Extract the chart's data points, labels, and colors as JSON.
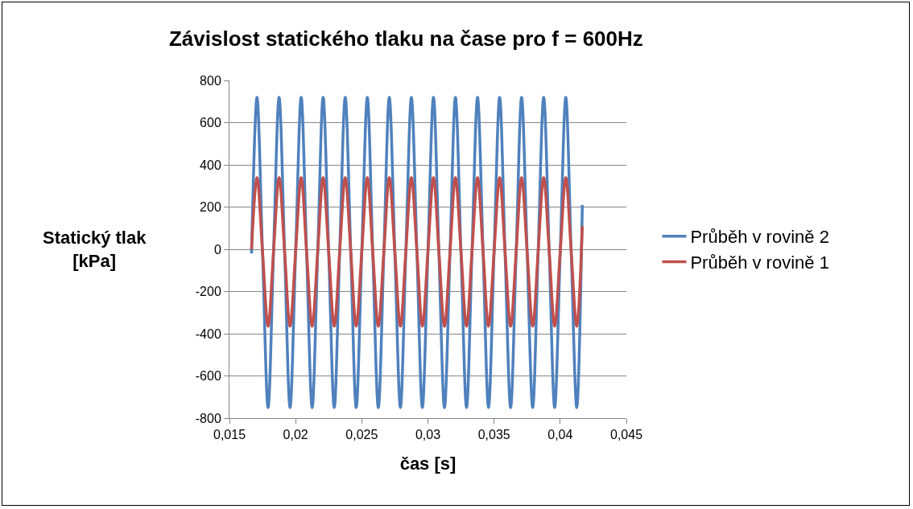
{
  "chart_data": {
    "type": "line",
    "title": "Závislost statického tlaku na čase pro f = 600Hz",
    "xlabel": "čas [s]",
    "ylabel": "Statický tlak\n[kPa]",
    "x": [
      0.01667,
      0.01708,
      0.0175,
      0.01792,
      0.01833,
      0.01875,
      0.01917,
      0.01958,
      0.02,
      0.02042,
      0.02083,
      0.02125,
      0.02167,
      0.02208,
      0.0225,
      0.02292,
      0.02333,
      0.02375,
      0.02417,
      0.02458,
      0.025,
      0.02542,
      0.02583,
      0.02625,
      0.02667,
      0.02708,
      0.0275,
      0.02792,
      0.02833,
      0.02875,
      0.02917,
      0.02958,
      0.03,
      0.03042,
      0.03083,
      0.03125,
      0.03167,
      0.03208,
      0.0325,
      0.03292,
      0.03333,
      0.03375,
      0.03417,
      0.03458,
      0.035,
      0.03542,
      0.03583,
      0.03625,
      0.03667,
      0.03708,
      0.0375,
      0.03792,
      0.03833,
      0.03875,
      0.03917,
      0.03958,
      0.04,
      0.04042,
      0.04083,
      0.04125,
      0.04167
    ],
    "series": [
      {
        "name": "Průběh v rovině 2",
        "color": "#4f81bd",
        "values": [
          -20,
          720,
          -15,
          -750,
          -15,
          720,
          -15,
          -750,
          -15,
          720,
          -15,
          -750,
          -15,
          720,
          -15,
          -750,
          -15,
          720,
          -15,
          -750,
          -15,
          720,
          -15,
          -750,
          -15,
          720,
          -15,
          -750,
          -15,
          720,
          -15,
          -750,
          -15,
          720,
          -15,
          -750,
          -15,
          720,
          -15,
          -750,
          -15,
          720,
          -15,
          -750,
          -15,
          720,
          -15,
          -750,
          -15,
          720,
          -15,
          -750,
          -15,
          720,
          -15,
          -750,
          -15,
          720,
          -15,
          -750,
          210
        ]
      },
      {
        "name": "Průběh v rovině 1",
        "color": "#c0504d",
        "values": [
          0,
          340,
          -12,
          -365,
          -12,
          340,
          -12,
          -365,
          -12,
          340,
          -12,
          -365,
          -12,
          340,
          -12,
          -365,
          -12,
          340,
          -12,
          -365,
          -12,
          340,
          -12,
          -365,
          -12,
          340,
          -12,
          -365,
          -12,
          340,
          -12,
          -365,
          -12,
          340,
          -12,
          -365,
          -12,
          340,
          -12,
          -365,
          -12,
          340,
          -12,
          -365,
          -12,
          340,
          -12,
          -365,
          -12,
          340,
          -12,
          -365,
          -12,
          340,
          -12,
          -365,
          -12,
          340,
          -12,
          -365,
          110
        ]
      }
    ],
    "xlim": [
      0.015,
      0.045
    ],
    "xticks": [
      {
        "value": 0.015,
        "label": "0,015"
      },
      {
        "value": 0.02,
        "label": "0,02"
      },
      {
        "value": 0.025,
        "label": "0,025"
      },
      {
        "value": 0.03,
        "label": "0,03"
      },
      {
        "value": 0.035,
        "label": "0,035"
      },
      {
        "value": 0.04,
        "label": "0,04"
      },
      {
        "value": 0.045,
        "label": "0,045"
      }
    ],
    "ylim": [
      -800,
      800
    ],
    "yticks": [
      -800,
      -600,
      -400,
      -200,
      0,
      200,
      400,
      600,
      800
    ],
    "grid": "y",
    "legend": "right",
    "marker": "none",
    "line_style": "solid"
  }
}
